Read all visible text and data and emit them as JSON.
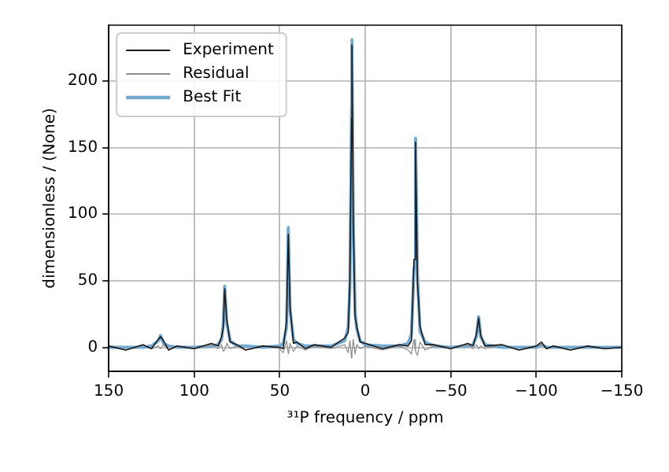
{
  "chart_data": {
    "type": "line",
    "xlabel": "³¹P frequency / ppm",
    "ylabel": "dimensionless / (None)",
    "x": [
      150,
      140,
      130,
      125,
      121,
      119.7,
      118,
      115,
      110,
      100,
      90,
      86,
      84,
      83,
      82.2,
      81,
      79,
      75,
      70,
      60,
      50,
      48,
      46,
      45,
      44,
      42,
      40,
      35,
      30,
      20,
      12,
      10,
      9,
      8,
      7.8,
      7,
      6,
      5,
      3,
      0,
      -10,
      -20,
      -25,
      -27,
      -28.5,
      -29.4,
      -30.5,
      -32,
      -35,
      -40,
      -50,
      -60,
      -63,
      -65,
      -66.3,
      -67.5,
      -70,
      -80,
      -90,
      -100,
      -103,
      -106,
      -110,
      -120,
      -130,
      -140,
      -150
    ],
    "series": [
      {
        "name": "Best Fit",
        "color": "#74a9d2",
        "values": [
          0,
          0,
          0,
          1,
          5,
          9,
          3,
          1,
          0,
          0,
          1,
          2,
          6,
          18,
          46,
          18,
          5,
          1,
          1,
          0,
          1,
          3,
          15,
          90,
          28,
          6,
          3,
          1,
          1,
          1,
          5,
          15,
          45,
          180,
          231,
          90,
          28,
          14,
          5,
          2,
          1,
          1,
          3,
          10,
          60,
          157,
          55,
          12,
          4,
          1,
          0,
          1,
          2,
          8,
          23,
          8,
          2,
          0,
          0,
          0,
          2,
          0,
          0,
          0,
          0,
          0,
          0
        ]
      },
      {
        "name": "Residual",
        "color": "#8c8c8c",
        "values": [
          1,
          -2,
          2,
          -1,
          1,
          -1,
          2,
          -2,
          1,
          -1,
          2,
          -1,
          2,
          -3,
          -2,
          3,
          -1,
          1,
          -2,
          1,
          -1,
          -4,
          5,
          -5,
          3,
          -3,
          1,
          -2,
          1,
          -1,
          2,
          -4,
          5,
          -8,
          -4,
          6,
          -5,
          2,
          -1,
          1,
          -2,
          1,
          -2,
          -5,
          6,
          -3,
          -6,
          4,
          -2,
          1,
          -1,
          2,
          -1,
          2,
          -1,
          1,
          -1,
          2,
          -2,
          1,
          2,
          -1,
          1,
          -2,
          1,
          -1,
          0
        ]
      },
      {
        "name": "Experiment",
        "color": "#1a1a1a",
        "values": [
          1,
          -2,
          2,
          -1,
          6,
          8,
          5,
          -2,
          1,
          -1,
          3,
          1,
          8,
          15,
          44,
          21,
          4,
          2,
          -2,
          1,
          0,
          -1,
          20,
          85,
          31,
          3,
          4,
          -1,
          2,
          0,
          7,
          11,
          50,
          172,
          227,
          96,
          23,
          16,
          4,
          3,
          -1,
          2,
          1,
          5,
          66,
          154,
          49,
          16,
          2,
          2,
          -1,
          3,
          1,
          10,
          22,
          9,
          1,
          2,
          -2,
          1,
          4,
          -1,
          1,
          -2,
          1,
          -1,
          0
        ]
      }
    ],
    "xlim": [
      150,
      -150
    ],
    "ylim": [
      -18,
      242
    ],
    "xticks": [
      150,
      100,
      50,
      0,
      {
        "value": -50,
        "label": "−50"
      },
      {
        "value": -100,
        "label": "−100"
      },
      {
        "value": -150,
        "label": "−150"
      }
    ],
    "yticks": [
      0,
      50,
      100,
      150,
      200
    ],
    "grid": true,
    "legend": "top left",
    "marker": "none",
    "line_style": "solid"
  }
}
